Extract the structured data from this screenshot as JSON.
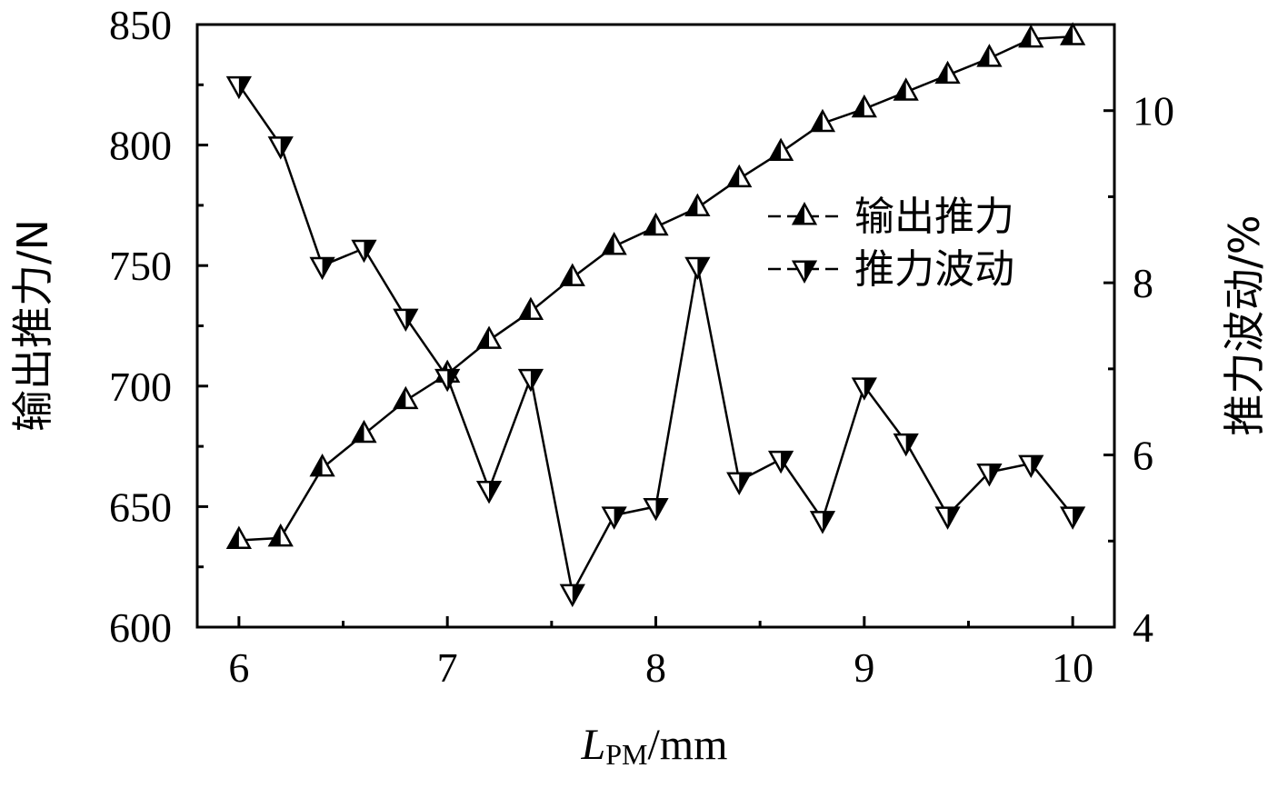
{
  "chart_data": {
    "type": "line",
    "x": [
      6.0,
      6.2,
      6.4,
      6.6,
      6.8,
      7.0,
      7.2,
      7.4,
      7.6,
      7.8,
      8.0,
      8.2,
      8.4,
      8.6,
      8.8,
      9.0,
      9.2,
      9.4,
      9.6,
      9.8,
      10.0
    ],
    "xlim": [
      5.8,
      10.2
    ],
    "x_ticks": [
      "6",
      "7",
      "8",
      "9",
      "10"
    ],
    "xlabel_italic": "L",
    "xlabel_subscript": "PM",
    "xlabel_suffix": "/mm",
    "left_axis": {
      "label": "输出推力/N",
      "ylim": [
        600,
        850
      ],
      "ticks": [
        "600",
        "650",
        "700",
        "750",
        "800",
        "850"
      ]
    },
    "right_axis": {
      "label": "推力波动/%",
      "ylim": [
        4,
        11
      ],
      "ticks": [
        "4",
        "6",
        "8",
        "10"
      ]
    },
    "series": [
      {
        "name": "输出推力",
        "axis": "left",
        "marker": "triangle-up-half",
        "values": [
          636,
          637,
          666,
          680,
          694,
          705,
          719,
          731,
          745,
          758,
          766,
          774,
          786,
          797,
          809,
          815,
          822,
          829,
          836,
          844,
          845
        ]
      },
      {
        "name": "推力波动",
        "axis": "right",
        "marker": "triangle-down-half",
        "values": [
          10.3,
          9.6,
          8.2,
          8.4,
          7.6,
          6.9,
          5.6,
          6.9,
          4.4,
          5.3,
          5.4,
          8.2,
          5.7,
          5.95,
          5.25,
          6.8,
          6.15,
          5.3,
          5.8,
          5.9,
          5.3
        ]
      }
    ]
  }
}
